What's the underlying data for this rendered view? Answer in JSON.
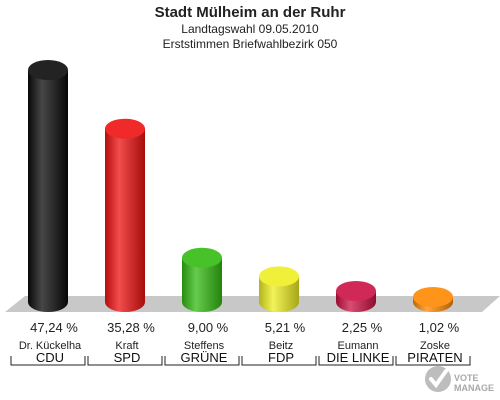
{
  "header": {
    "title": "Stadt Mülheim an der Ruhr",
    "subtitle1": "Landtagswahl 09.05.2010",
    "subtitle2": "Erststimmen Briefwahlbezirk 050"
  },
  "logo": {
    "text": "VOTE MANAGER",
    "icon": "checkmark-ballot-icon"
  },
  "chart_data": {
    "type": "bar",
    "title": "Stadt Mülheim an der Ruhr",
    "subtitle": "Landtagswahl 09.05.2010 / Erststimmen Briefwahlbezirk 050",
    "categories": [
      "CDU",
      "SPD",
      "GRÜNE",
      "FDP",
      "DIE LINKE",
      "PIRATEN"
    ],
    "candidates": [
      "Dr. Kückelha",
      "Kraft",
      "Steffens",
      "Beitz",
      "Eumann",
      "Zoske"
    ],
    "values": [
      47.24,
      35.28,
      9.0,
      5.21,
      2.25,
      1.02
    ],
    "value_labels": [
      "47,24 %",
      "35,28 %",
      "9,00 %",
      "5,21 %",
      "2,25 %",
      "1,02 %"
    ],
    "colors": [
      "#0a0a0a",
      "#ee1111",
      "#33bb11",
      "#eeee22",
      "#cc1144",
      "#ff8800"
    ],
    "ylim": [
      0,
      47.24
    ],
    "grid": false
  }
}
